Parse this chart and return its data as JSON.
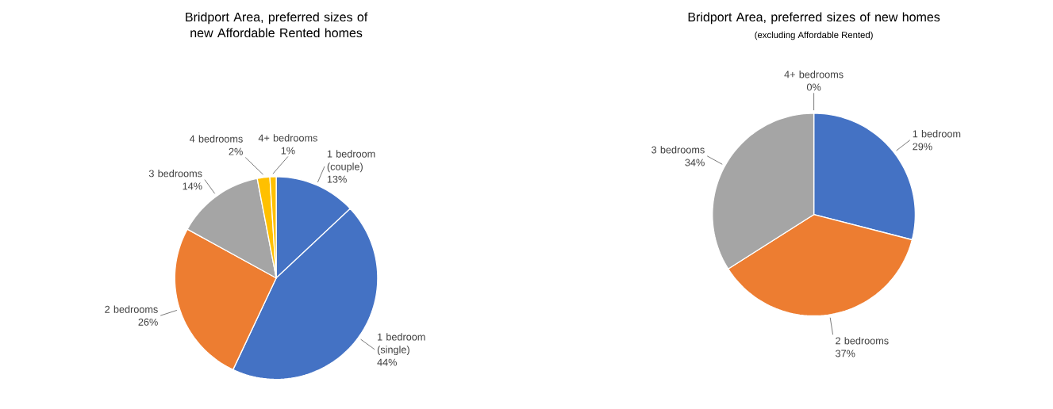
{
  "chart_data": [
    {
      "type": "pie",
      "title": "Bridport Area, preferred sizes of new Affordable Rented homes",
      "categories": [
        "1 bedroom (couple)",
        "1 bedroom (single)",
        "2 bedrooms",
        "3 bedrooms",
        "4 bedrooms",
        "4+ bedrooms"
      ],
      "values": [
        13,
        44,
        26,
        14,
        2,
        1
      ],
      "value_labels": [
        "13%",
        "44%",
        "26%",
        "14%",
        "2%",
        "1%"
      ],
      "colors": [
        "#4472c4",
        "#4472c4",
        "#ed7d31",
        "#a5a5a5",
        "#ffc000",
        "#ffc000"
      ]
    },
    {
      "type": "pie",
      "title": "Bridport Area, preferred sizes of new homes",
      "subtitle": "(excluding Affordable Rented)",
      "categories": [
        "1 bedroom",
        "2 bedrooms",
        "3 bedrooms",
        "4+ bedrooms"
      ],
      "values": [
        29,
        37,
        34,
        0
      ],
      "value_labels": [
        "29%",
        "37%",
        "34%",
        "0%"
      ],
      "colors": [
        "#4472c4",
        "#ed7d31",
        "#a5a5a5",
        "#ffc000"
      ]
    }
  ]
}
